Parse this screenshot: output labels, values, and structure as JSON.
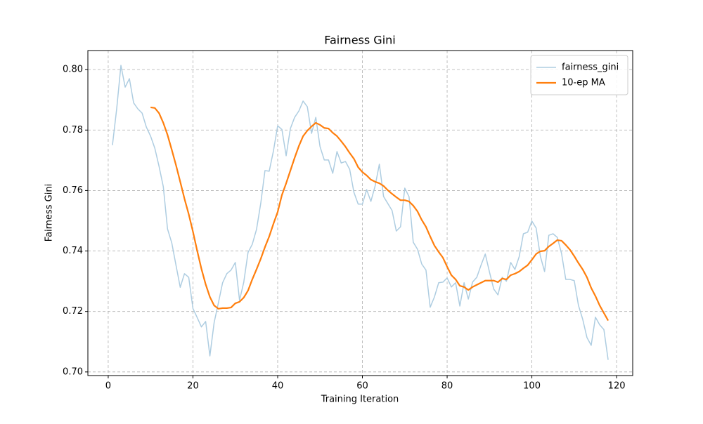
{
  "chart_data": {
    "type": "line",
    "title": "Fairness Gini",
    "xlabel": "Training Iteration",
    "ylabel": "Fairness Gini",
    "xlim": [
      -4.8,
      123.8
    ],
    "ylim": [
      0.6988,
      0.8063
    ],
    "xticks": [
      0,
      20,
      40,
      60,
      80,
      100,
      120
    ],
    "yticks": [
      {
        "value": 0.7,
        "label": "0.70"
      },
      0.72,
      0.74,
      0.76,
      0.78,
      {
        "value": 0.8,
        "label": "0.80"
      }
    ],
    "grid": true,
    "legend": "upper right",
    "series": [
      {
        "name": "fairness_gini",
        "color": "#aecde1",
        "width": 1.5,
        "x": [
          1,
          2,
          3,
          4,
          5,
          6,
          7,
          8,
          9,
          10,
          11,
          12,
          13,
          14,
          15,
          16,
          17,
          18,
          19,
          20,
          21,
          22,
          23,
          24,
          25,
          26,
          27,
          28,
          29,
          30,
          31,
          32,
          33,
          34,
          35,
          36,
          37,
          38,
          39,
          40,
          41,
          42,
          43,
          44,
          45,
          46,
          47,
          48,
          49,
          50,
          51,
          52,
          53,
          54,
          55,
          56,
          57,
          58,
          59,
          60,
          61,
          62,
          63,
          64,
          65,
          66,
          67,
          68,
          69,
          70,
          71,
          72,
          73,
          74,
          75,
          76,
          77,
          78,
          79,
          80,
          81,
          82,
          83,
          84,
          85,
          86,
          87,
          88,
          89,
          90,
          91,
          92,
          93,
          94,
          95,
          96,
          97,
          98,
          99,
          100,
          101,
          102,
          103,
          104,
          105,
          106,
          107,
          108,
          109,
          110,
          111,
          112,
          113,
          114,
          115,
          116,
          117,
          118
        ],
        "values": [
          0.775,
          0.787,
          0.8014,
          0.7942,
          0.797,
          0.789,
          0.787,
          0.7856,
          0.781,
          0.778,
          0.774,
          0.768,
          0.7613,
          0.7473,
          0.7427,
          0.7353,
          0.728,
          0.7325,
          0.7313,
          0.721,
          0.718,
          0.7149,
          0.7167,
          0.7053,
          0.7163,
          0.7228,
          0.7295,
          0.7325,
          0.7337,
          0.7362,
          0.7237,
          0.7297,
          0.7395,
          0.7422,
          0.7471,
          0.7557,
          0.7666,
          0.7664,
          0.7731,
          0.7814,
          0.7802,
          0.7715,
          0.7805,
          0.7842,
          0.7863,
          0.7896,
          0.7877,
          0.7789,
          0.7842,
          0.7745,
          0.7701,
          0.7701,
          0.7657,
          0.7729,
          0.7691,
          0.7696,
          0.767,
          0.7594,
          0.7555,
          0.7555,
          0.7603,
          0.7564,
          0.7615,
          0.7687,
          0.758,
          0.7557,
          0.7534,
          0.7466,
          0.748,
          0.7608,
          0.758,
          0.7429,
          0.7406,
          0.7357,
          0.7337,
          0.7214,
          0.7248,
          0.7295,
          0.7297,
          0.7311,
          0.7281,
          0.7295,
          0.7218,
          0.7295,
          0.7241,
          0.7297,
          0.7313,
          0.7353,
          0.739,
          0.733,
          0.7274,
          0.7255,
          0.7313,
          0.73,
          0.7362,
          0.7339,
          0.7381,
          0.7457,
          0.7462,
          0.7499,
          0.7476,
          0.7383,
          0.7332,
          0.7452,
          0.7457,
          0.7445,
          0.7392,
          0.7306,
          0.7306,
          0.7302,
          0.722,
          0.7174,
          0.7114,
          0.7088,
          0.7181,
          0.7156,
          0.714,
          0.704
        ]
      },
      {
        "name": "10-ep MA",
        "color": "#ff7f0e",
        "width": 2.2,
        "x": [
          10,
          11,
          12,
          13,
          14,
          15,
          16,
          17,
          18,
          19,
          20,
          21,
          22,
          23,
          24,
          25,
          26,
          27,
          28,
          29,
          30,
          31,
          32,
          33,
          34,
          35,
          36,
          37,
          38,
          39,
          40,
          41,
          42,
          43,
          44,
          45,
          46,
          47,
          48,
          49,
          50,
          51,
          52,
          53,
          54,
          55,
          56,
          57,
          58,
          59,
          60,
          61,
          62,
          63,
          64,
          65,
          66,
          67,
          68,
          69,
          70,
          71,
          72,
          73,
          74,
          75,
          76,
          77,
          78,
          79,
          80,
          81,
          82,
          83,
          84,
          85,
          86,
          87,
          88,
          89,
          90,
          91,
          92,
          93,
          94,
          95,
          96,
          97,
          98,
          99,
          100,
          101,
          102,
          103,
          104,
          105,
          106,
          107,
          108,
          109,
          110,
          111,
          112,
          113,
          114,
          115,
          116,
          117,
          118
        ],
        "values": [
          0.7875,
          0.7873,
          0.7856,
          0.7824,
          0.7784,
          0.7735,
          0.7684,
          0.7629,
          0.7573,
          0.7522,
          0.7464,
          0.7401,
          0.7341,
          0.729,
          0.7248,
          0.722,
          0.7209,
          0.7211,
          0.7211,
          0.7213,
          0.7227,
          0.7232,
          0.7246,
          0.7269,
          0.7306,
          0.7339,
          0.7374,
          0.7413,
          0.7448,
          0.749,
          0.7529,
          0.7585,
          0.7624,
          0.7666,
          0.7708,
          0.7747,
          0.778,
          0.7798,
          0.7812,
          0.7824,
          0.7817,
          0.7807,
          0.7805,
          0.7791,
          0.778,
          0.7763,
          0.7745,
          0.7724,
          0.7705,
          0.7677,
          0.7661,
          0.765,
          0.7636,
          0.7629,
          0.7624,
          0.7615,
          0.7601,
          0.7589,
          0.7578,
          0.7568,
          0.7568,
          0.7564,
          0.755,
          0.7531,
          0.7503,
          0.748,
          0.7448,
          0.7418,
          0.7397,
          0.7378,
          0.7348,
          0.732,
          0.7306,
          0.7285,
          0.7281,
          0.7271,
          0.7281,
          0.7288,
          0.7295,
          0.7302,
          0.7302,
          0.7302,
          0.7297,
          0.7309,
          0.7306,
          0.732,
          0.7325,
          0.7332,
          0.7343,
          0.7353,
          0.7371,
          0.739,
          0.7399,
          0.7401,
          0.7415,
          0.7425,
          0.7436,
          0.7434,
          0.742,
          0.7404,
          0.7383,
          0.736,
          0.7339,
          0.7313,
          0.7278,
          0.7251,
          0.722,
          0.7195,
          0.717
        ]
      }
    ]
  }
}
